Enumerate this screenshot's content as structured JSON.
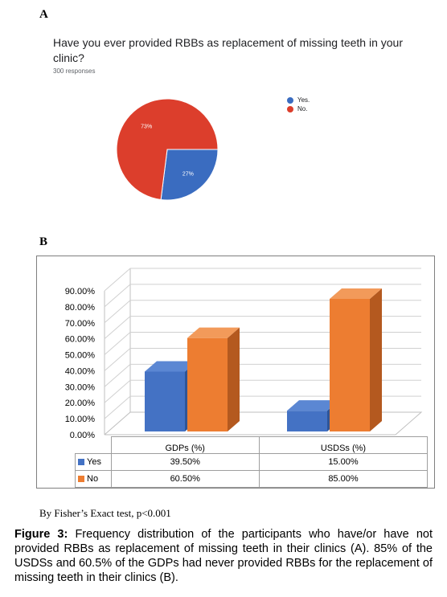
{
  "panel_a_label": "A",
  "panel_b_label": "B",
  "colors": {
    "yes_pie": "#3a6cc0",
    "no_pie": "#dc3e2c",
    "yes_bar": "#4472c4",
    "no_bar": "#ed7d31"
  },
  "chart_data": [
    {
      "type": "pie",
      "title": "Have you ever provided RBBs as replacement of missing teeth in your clinic?",
      "subtitle": "300 responses",
      "slices": [
        {
          "name": "Yes.",
          "value": 27,
          "label": "27%"
        },
        {
          "name": "No.",
          "value": 73,
          "label": "73%"
        }
      ],
      "legend_position": "top-right"
    },
    {
      "type": "bar",
      "categories": [
        "GDPs (%)",
        "USDSs (%)"
      ],
      "series": [
        {
          "name": "Yes",
          "values": [
            39.5,
            15.0
          ],
          "labels": [
            "39.50%",
            "15.00%"
          ]
        },
        {
          "name": "No",
          "values": [
            60.5,
            85.0
          ],
          "labels": [
            "60.50%",
            "85.00%"
          ]
        }
      ],
      "ylim": [
        0,
        90
      ],
      "yticks": [
        "0.00%",
        "10.00%",
        "20.00%",
        "30.00%",
        "40.00%",
        "50.00%",
        "60.00%",
        "70.00%",
        "80.00%",
        "90.00%"
      ],
      "grid": true,
      "data_table": true
    }
  ],
  "footnote": "By Fisher’s Exact test, p<0.001",
  "caption": {
    "label": "Figure 3:",
    "text": " Frequency distribution of the participants who have/or have not provided RBBs as replacement of missing teeth in their clinics (A). 85% of the USDSs and 60.5% of the GDPs had never provided RBBs for the replacement of missing teeth in their clinics (B)."
  }
}
